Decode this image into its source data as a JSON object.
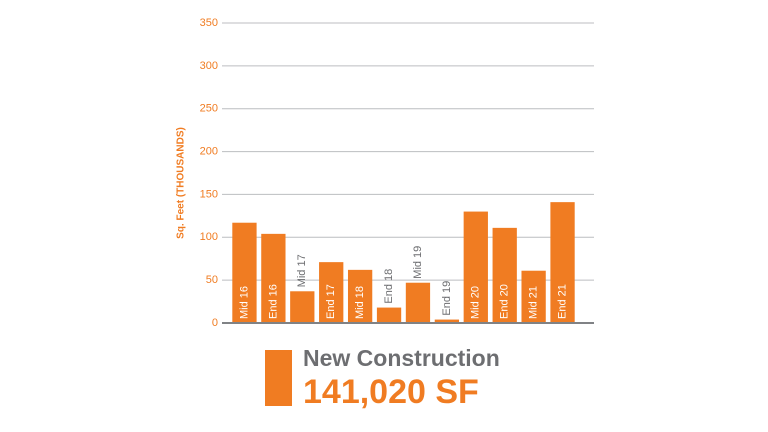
{
  "chart_data": {
    "type": "bar",
    "y_label": "Sq. Feet (THOUSANDS)",
    "categories": [
      "Mid 16",
      "End 16",
      "Mid 17",
      "End 17",
      "Mid 18",
      "End 18",
      "Mid 19",
      "End 19",
      "Mid 20",
      "End 20",
      "Mid 21",
      "End 21"
    ],
    "series": [
      {
        "name": "New Construction",
        "color": "#f07c22",
        "values": [
          117,
          104,
          37,
          71,
          62,
          18,
          47,
          4,
          130,
          111,
          61,
          141
        ]
      }
    ],
    "annotation": "141,020 SF",
    "ylim": [
      0,
      350
    ],
    "yticks": [
      0,
      50,
      100,
      150,
      200,
      250,
      300,
      350
    ],
    "grid": true
  }
}
